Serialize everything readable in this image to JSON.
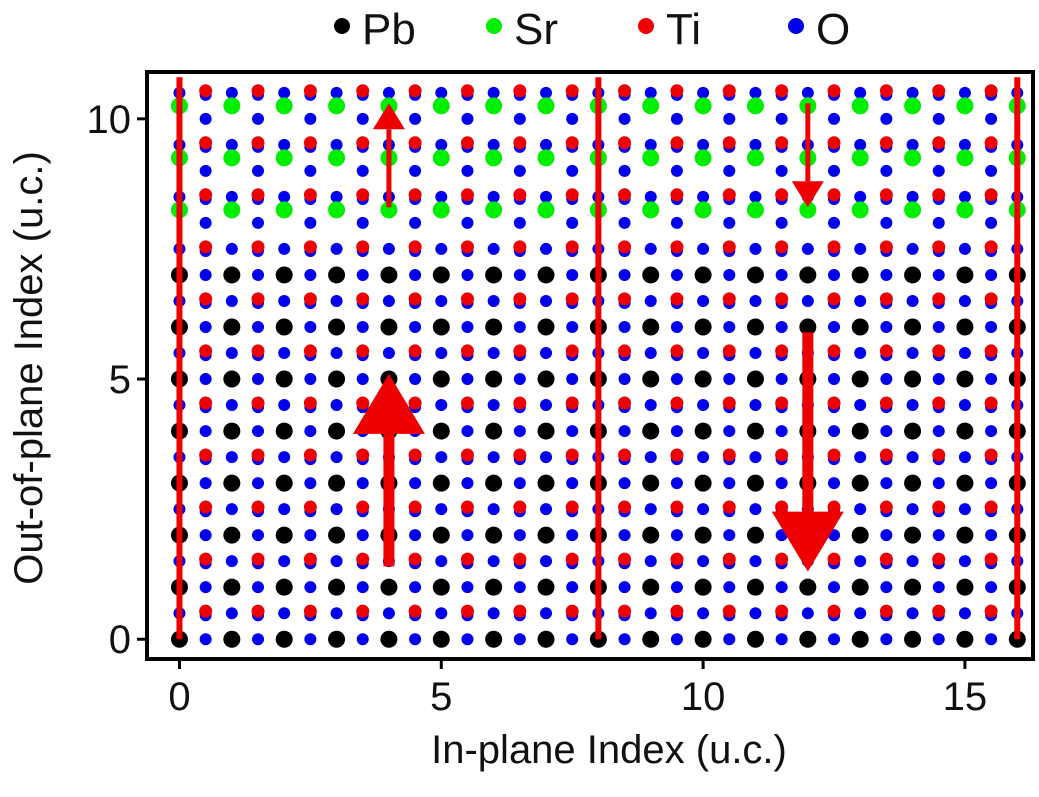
{
  "chart_data": {
    "type": "scatter",
    "xlabel": "In-plane Index (u.c.)",
    "ylabel": "Out-of-plane Index (u.c.)",
    "xlim": [
      -0.62,
      16.3
    ],
    "ylim": [
      -0.38,
      10.9
    ],
    "xticks": [
      0,
      5,
      10,
      15
    ],
    "yticks": [
      0,
      5,
      10
    ],
    "grid": false,
    "legend": {
      "placement": "top",
      "entries": [
        {
          "name": "Pb",
          "color": "#000000"
        },
        {
          "name": "Sr",
          "color": "#00ee00"
        },
        {
          "name": "Ti",
          "color": "#ee0000"
        },
        {
          "name": "O",
          "color": "#0000ee"
        }
      ]
    },
    "lattice": {
      "columns": [
        0,
        16
      ],
      "pb_rows": [
        0,
        7
      ],
      "sr_rows": [
        8,
        10
      ],
      "ti_row_offset": 0.5,
      "o_row_offsets": [
        0.0,
        0.5
      ]
    },
    "domain_walls": [
      {
        "x": 0,
        "y_range": [
          0,
          10.8
        ]
      },
      {
        "x": 8,
        "y_range": [
          0,
          10.8
        ]
      },
      {
        "x": 16,
        "y_range": [
          0,
          10.8
        ]
      }
    ],
    "polarization_arrows": [
      {
        "x": 4,
        "y_from": 1.4,
        "y_to": 5.1,
        "direction": "up",
        "size": "large"
      },
      {
        "x": 4,
        "y_from": 8.3,
        "y_to": 10.3,
        "direction": "up",
        "size": "small"
      },
      {
        "x": 12,
        "y_from": 5.9,
        "y_to": 1.3,
        "direction": "down",
        "size": "large"
      },
      {
        "x": 12,
        "y_from": 10.3,
        "y_to": 8.3,
        "direction": "down",
        "size": "small"
      }
    ]
  }
}
